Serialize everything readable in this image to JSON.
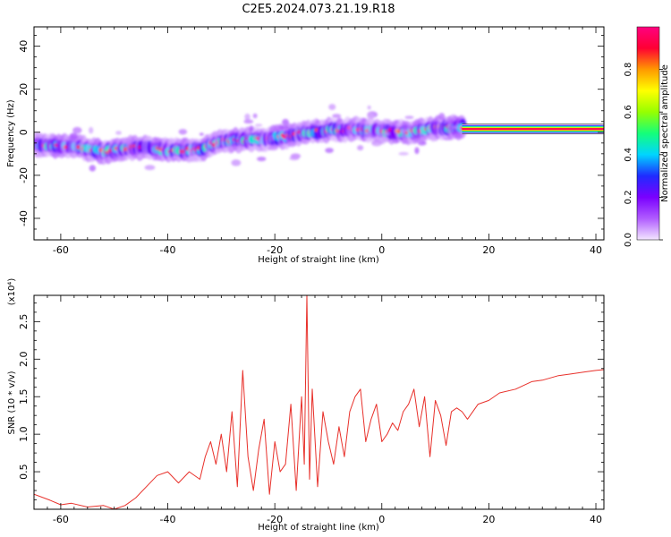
{
  "title": "C2E5.2024.073.21.19.R18",
  "chart_data": [
    {
      "type": "heatmap",
      "xlabel": "Height of straight line (km)",
      "ylabel": "Frequency (Hz)",
      "xlim": [
        -65,
        41.5
      ],
      "ylim": [
        -50,
        49
      ],
      "xticks": [
        -60,
        -40,
        -20,
        0,
        20,
        40
      ],
      "yticks": [
        -40,
        -20,
        0,
        20,
        40
      ],
      "colorbar": {
        "label": "Normalized spectral amplitude",
        "range": [
          0,
          1
        ],
        "ticks": [
          0.0,
          0.2,
          0.4,
          0.6,
          0.8
        ],
        "tick_labels": [
          "0.0",
          "0.2",
          "0.4",
          "0.6",
          "0.8"
        ],
        "colors": [
          "#f3e6ff",
          "#b05cff",
          "#7a00ff",
          "#1f2bff",
          "#00d5ff",
          "#14ff7a",
          "#96ff00",
          "#ffff00",
          "#ff9900",
          "#ff0033",
          "#ff0080"
        ]
      },
      "ridge": [
        {
          "x": -64,
          "y": -6
        },
        {
          "x": -58,
          "y": -6.5
        },
        {
          "x": -52,
          "y": -9
        },
        {
          "x": -46,
          "y": -7
        },
        {
          "x": -40,
          "y": -8.5
        },
        {
          "x": -34,
          "y": -8
        },
        {
          "x": -30,
          "y": -4
        },
        {
          "x": -25,
          "y": -3.5
        },
        {
          "x": -22,
          "y": -3
        },
        {
          "x": -18,
          "y": -2
        },
        {
          "x": -14,
          "y": 0
        },
        {
          "x": -10,
          "y": 1
        },
        {
          "x": -5,
          "y": 1.5
        },
        {
          "x": 0,
          "y": 0.5
        },
        {
          "x": 5,
          "y": 0
        },
        {
          "x": 10,
          "y": 2
        },
        {
          "x": 15,
          "y": 2.5
        },
        {
          "x": 20,
          "y": 1.5
        },
        {
          "x": 30,
          "y": 1.5
        },
        {
          "x": 41.5,
          "y": 1.5
        }
      ]
    },
    {
      "type": "line",
      "xlabel": "Height of straight line (km)",
      "ylabel": "SNR (10 * v/v)",
      "scale_label": "(x10⁴)",
      "xlim": [
        -65,
        41.5
      ],
      "ylim": [
        0,
        2.85
      ],
      "xticks": [
        -60,
        -40,
        -20,
        0,
        20,
        40
      ],
      "yticks": [
        0.5,
        1.0,
        1.5,
        2.0,
        2.5
      ],
      "ytick_labels": [
        "0.5",
        "1.0",
        "1.5",
        "2.0",
        "2.5"
      ],
      "color": "#e8302a",
      "series": [
        {
          "x": [
            -65,
            -62,
            -60,
            -58,
            -55,
            -52,
            -50,
            -48,
            -46,
            -44,
            -42,
            -40,
            -38,
            -36,
            -34,
            -33,
            -32,
            -31,
            -30,
            -29,
            -28,
            -27,
            -26,
            -25,
            -24,
            -23,
            -22,
            -21,
            -20,
            -19,
            -18,
            -17,
            -16,
            -15,
            -14.5,
            -14,
            -13.5,
            -13,
            -12,
            -11,
            -10,
            -9,
            -8,
            -7,
            -6,
            -5,
            -4,
            -3,
            -2,
            -1,
            0,
            1,
            2,
            3,
            4,
            5,
            6,
            7,
            8,
            9,
            10,
            11,
            12,
            13,
            14,
            15,
            16,
            18,
            20,
            22,
            25,
            28,
            30,
            33,
            35,
            38,
            40,
            41.5
          ],
          "y": [
            0.2,
            0.12,
            0.06,
            0.08,
            0.03,
            0.05,
            0.0,
            0.05,
            0.15,
            0.3,
            0.45,
            0.5,
            0.35,
            0.5,
            0.4,
            0.7,
            0.9,
            0.6,
            1.0,
            0.5,
            1.3,
            0.3,
            1.85,
            0.7,
            0.25,
            0.8,
            1.2,
            0.2,
            0.9,
            0.5,
            0.6,
            1.4,
            0.25,
            1.5,
            0.6,
            2.85,
            0.4,
            1.6,
            0.3,
            1.3,
            0.9,
            0.6,
            1.1,
            0.7,
            1.3,
            1.5,
            1.6,
            0.9,
            1.2,
            1.4,
            0.9,
            1.0,
            1.15,
            1.05,
            1.3,
            1.4,
            1.6,
            1.1,
            1.5,
            0.7,
            1.45,
            1.25,
            0.85,
            1.3,
            1.35,
            1.3,
            1.2,
            1.4,
            1.45,
            1.55,
            1.6,
            1.7,
            1.72,
            1.78,
            1.8,
            1.83,
            1.85,
            1.86
          ]
        }
      ]
    }
  ]
}
